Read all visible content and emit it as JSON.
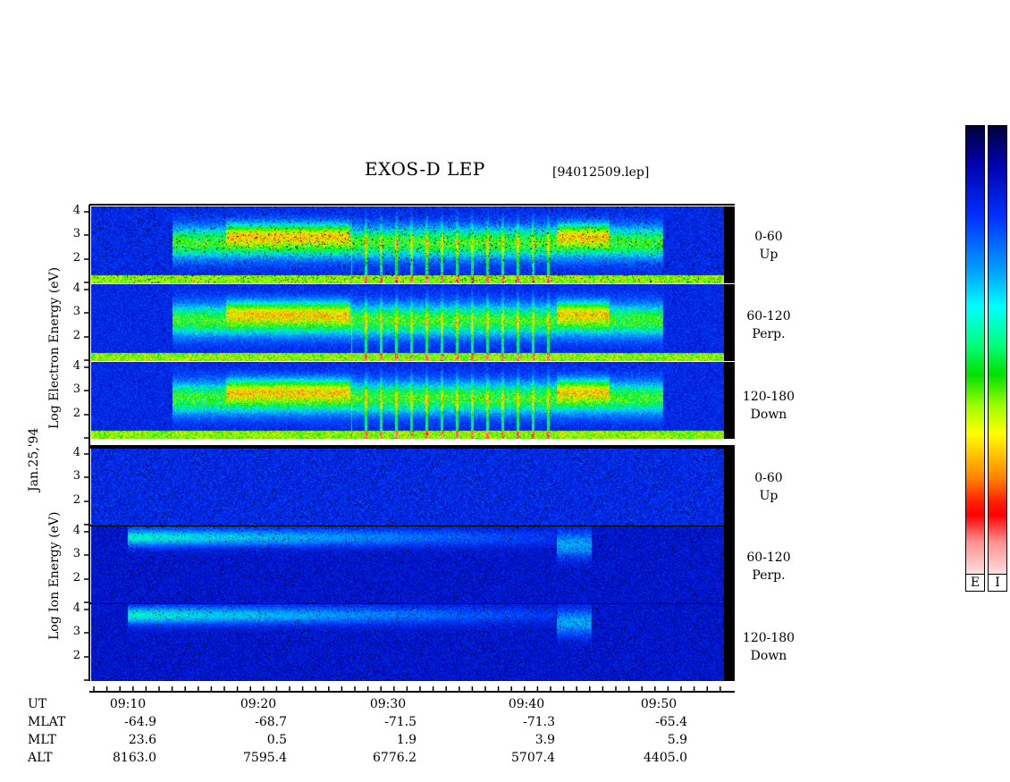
{
  "header": {
    "title": "EXOS-D LEP",
    "file": "[94012509.lep]"
  },
  "axes": {
    "electron_ylabel": "Log   Electron   Energy  (eV)",
    "ion_ylabel": "Log     Ion     Energy  (eV)",
    "date": "Jan.25,'94",
    "yticks_top": [
      "4",
      "3",
      "2"
    ],
    "yticks_bottom": [
      "4",
      "3",
      "2"
    ]
  },
  "panels": {
    "electron": [
      {
        "angle": "0-60",
        "direction": "Up"
      },
      {
        "angle": "60-120",
        "direction": "Perp."
      },
      {
        "angle": "120-180",
        "direction": "Down"
      }
    ],
    "ion": [
      {
        "angle": "0-60",
        "direction": "Up"
      },
      {
        "angle": "60-120",
        "direction": "Perp."
      },
      {
        "angle": "120-180",
        "direction": "Down"
      }
    ]
  },
  "colorbar": {
    "labels": [
      "E",
      "I"
    ],
    "colors": [
      "#00003a",
      "#0000a8",
      "#0030ff",
      "#00a0ff",
      "#00ffff",
      "#00ff80",
      "#00e000",
      "#a0ff00",
      "#ffff00",
      "#ffc000",
      "#ff8000",
      "#ff0000",
      "#ff9090",
      "#ffe8e8"
    ]
  },
  "footer": {
    "row_labels": [
      "UT",
      "MLAT",
      "MLT",
      "ALT"
    ],
    "columns": [
      {
        "ut": "09:10",
        "mlat": "-64.9",
        "mlt": "23.6",
        "alt": "8163.0"
      },
      {
        "ut": "09:20",
        "mlat": "-68.7",
        "mlt": "0.5",
        "alt": "7595.4"
      },
      {
        "ut": "09:30",
        "mlat": "-71.5",
        "mlt": "1.9",
        "alt": "6776.2"
      },
      {
        "ut": "09:40",
        "mlat": "-71.3",
        "mlt": "3.9",
        "alt": "5707.4"
      },
      {
        "ut": "09:50",
        "mlat": "-65.4",
        "mlt": "5.9",
        "alt": "4405.0"
      }
    ]
  },
  "chart_data": {
    "type": "heatmap",
    "title": "EXOS-D LEP",
    "xlabel": "UT",
    "x_ticks": [
      "09:10",
      "09:20",
      "09:30",
      "09:40",
      "09:50"
    ],
    "ylabel_electron": "Log Electron Energy (eV)",
    "ylabel_ion": "Log Ion Energy (eV)",
    "ylim": [
      1,
      4
    ],
    "panels": [
      {
        "species": "Electron",
        "pitch_angle": "0-60",
        "direction": "Up"
      },
      {
        "species": "Electron",
        "pitch_angle": "60-120",
        "direction": "Perp."
      },
      {
        "species": "Electron",
        "pitch_angle": "120-180",
        "direction": "Down"
      },
      {
        "species": "Ion",
        "pitch_angle": "0-60",
        "direction": "Up"
      },
      {
        "species": "Ion",
        "pitch_angle": "60-120",
        "direction": "Perp."
      },
      {
        "species": "Ion",
        "pitch_angle": "120-180",
        "direction": "Down"
      }
    ]
  }
}
